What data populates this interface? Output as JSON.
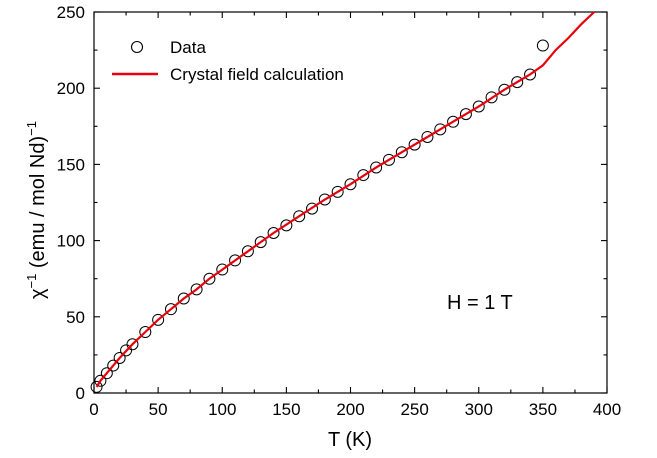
{
  "chart_data": {
    "type": "scatter",
    "xlabel": "T (K)",
    "ylabel_main": "χ",
    "ylabel_exp1": "−1",
    "ylabel_mid": " (emu / mol Nd)",
    "ylabel_exp2": "−1",
    "xlim": [
      0,
      400
    ],
    "ylim": [
      0,
      250
    ],
    "x_ticks": [
      "0",
      "50",
      "100",
      "150",
      "200",
      "250",
      "300",
      "350",
      "400"
    ],
    "y_ticks": [
      "0",
      "50",
      "100",
      "150",
      "200",
      "250"
    ],
    "grid": false,
    "legend_position": "top-left",
    "annotation": "H = 1 T",
    "series": [
      {
        "name": "Data",
        "style": "open-circle",
        "color": "#000000",
        "x": [
          2,
          5,
          10,
          15,
          20,
          25,
          30,
          40,
          50,
          60,
          70,
          80,
          90,
          100,
          110,
          120,
          130,
          140,
          150,
          160,
          170,
          180,
          190,
          200,
          210,
          220,
          230,
          240,
          250,
          260,
          270,
          280,
          290,
          300,
          310,
          320,
          330,
          340,
          350
        ],
        "y": [
          4,
          8,
          13,
          18,
          23,
          28,
          32,
          40,
          48,
          55,
          62,
          68,
          75,
          81,
          87,
          93,
          99,
          105,
          110,
          116,
          121,
          127,
          132,
          137,
          143,
          148,
          153,
          158,
          163,
          168,
          173,
          178,
          183,
          188,
          194,
          199,
          204,
          209,
          228
        ]
      },
      {
        "name": "Crystal field calculation",
        "style": "line",
        "color": "#e8000b",
        "x": [
          2,
          5,
          10,
          20,
          30,
          40,
          50,
          60,
          70,
          80,
          90,
          100,
          120,
          140,
          160,
          180,
          200,
          220,
          240,
          260,
          280,
          300,
          320,
          340,
          350,
          360,
          370,
          380,
          390
        ],
        "y": [
          4,
          8,
          13,
          23,
          32,
          40,
          48,
          55,
          62,
          68,
          75,
          81,
          93,
          105,
          116,
          127,
          137,
          148,
          158,
          168,
          178,
          188,
          199,
          209,
          215,
          225,
          233,
          242,
          250
        ]
      }
    ]
  }
}
